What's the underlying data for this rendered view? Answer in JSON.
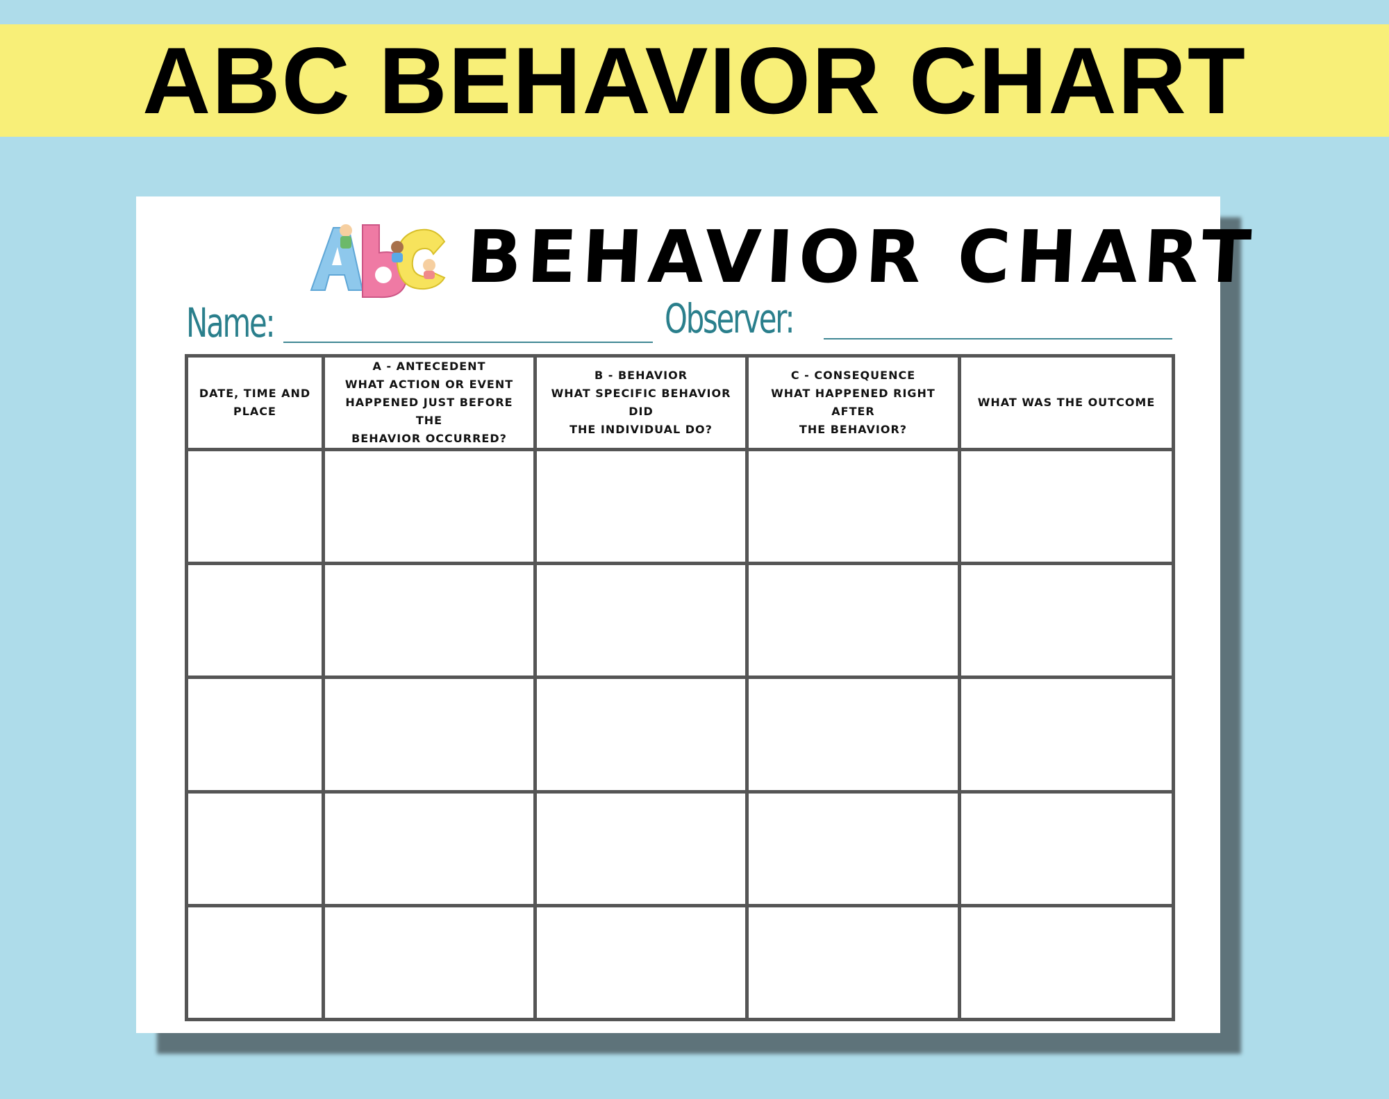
{
  "banner": {
    "title": "ABC BEHAVIOR CHART"
  },
  "colors": {
    "background": "#aedcea",
    "banner": "#f8ef78",
    "label_teal": "#2a7f8c",
    "grid": "#555555",
    "logo_a": "#8ec8ec",
    "logo_b": "#ef7aa4",
    "logo_c": "#f7e35c"
  },
  "sheet": {
    "logo": "ABC",
    "title": "BEHAVIOR CHART",
    "name_label": "Name:",
    "observer_label": "Observer:",
    "columns": [
      {
        "lines": [
          "Date, time and",
          "place"
        ]
      },
      {
        "lines": [
          "A - Antecedent",
          "What action or event",
          "happened just before the",
          "behavior occurred?"
        ]
      },
      {
        "lines": [
          "B - Behavior",
          "What specific behavior did",
          "the individual do?"
        ]
      },
      {
        "lines": [
          "C - Consequence",
          "What happened right after",
          "the behavior?"
        ]
      },
      {
        "lines": [
          "What was the outcome"
        ]
      }
    ],
    "row_count": 5
  }
}
